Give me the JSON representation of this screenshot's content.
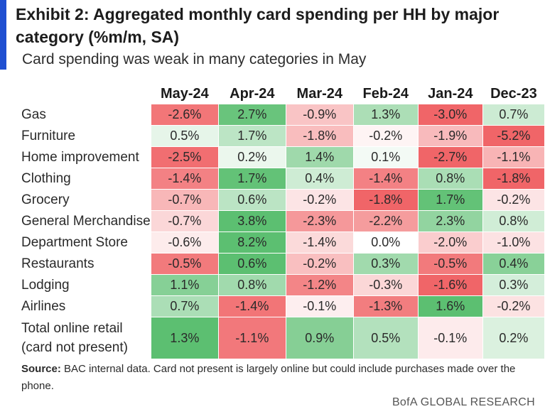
{
  "header": {
    "title": "Exhibit 2: Aggregated monthly card spending per HH by major category (%m/m, SA)",
    "subtitle": "Card spending was weak in many categories in May"
  },
  "chart_data": {
    "type": "table",
    "columns": [
      "May-24",
      "Apr-24",
      "Mar-24",
      "Feb-24",
      "Jan-24",
      "Dec-23"
    ],
    "rows": [
      {
        "label_lines": [
          "Gas"
        ],
        "values": [
          -2.6,
          2.7,
          -0.9,
          1.3,
          -3.0,
          0.7
        ]
      },
      {
        "label_lines": [
          "Furniture"
        ],
        "values": [
          0.5,
          1.7,
          -1.8,
          -0.2,
          -1.9,
          -5.2
        ]
      },
      {
        "label_lines": [
          "Home improvement"
        ],
        "values": [
          -2.5,
          0.2,
          1.4,
          0.1,
          -2.7,
          -1.1
        ]
      },
      {
        "label_lines": [
          "Clothing"
        ],
        "values": [
          -1.4,
          1.7,
          0.4,
          -1.4,
          0.8,
          -1.8
        ]
      },
      {
        "label_lines": [
          "Grocery"
        ],
        "values": [
          -0.7,
          0.6,
          -0.2,
          -1.8,
          1.7,
          -0.2
        ]
      },
      {
        "label_lines": [
          "General Merchandise"
        ],
        "values": [
          -0.7,
          3.8,
          -2.3,
          -2.2,
          2.3,
          0.8
        ]
      },
      {
        "label_lines": [
          "Department Store"
        ],
        "values": [
          -0.6,
          8.2,
          -1.4,
          0.0,
          -2.0,
          -1.0
        ]
      },
      {
        "label_lines": [
          "Restaurants"
        ],
        "values": [
          -0.5,
          0.6,
          -0.2,
          0.3,
          -0.5,
          0.4
        ]
      },
      {
        "label_lines": [
          "Lodging"
        ],
        "values": [
          1.1,
          0.8,
          -1.2,
          -0.3,
          -1.6,
          0.3
        ]
      },
      {
        "label_lines": [
          "Airlines"
        ],
        "values": [
          0.7,
          -1.4,
          -0.1,
          -1.3,
          1.6,
          -0.2
        ]
      },
      {
        "label_lines": [
          "Total online retail",
          "(card not present)"
        ],
        "values": [
          1.3,
          -1.1,
          0.9,
          0.5,
          -0.1,
          0.2
        ]
      }
    ],
    "value_suffix": "%",
    "colors": {
      "positive_strong": "#5cbf71",
      "negative_strong": "#f06568",
      "neutral": "#ffffff"
    }
  },
  "source": {
    "label": "Source:",
    "text": " BAC internal data. Card not present is largely online but could include purchases made over the phone."
  },
  "footer": {
    "brand": "BofA GLOBAL RESEARCH"
  }
}
